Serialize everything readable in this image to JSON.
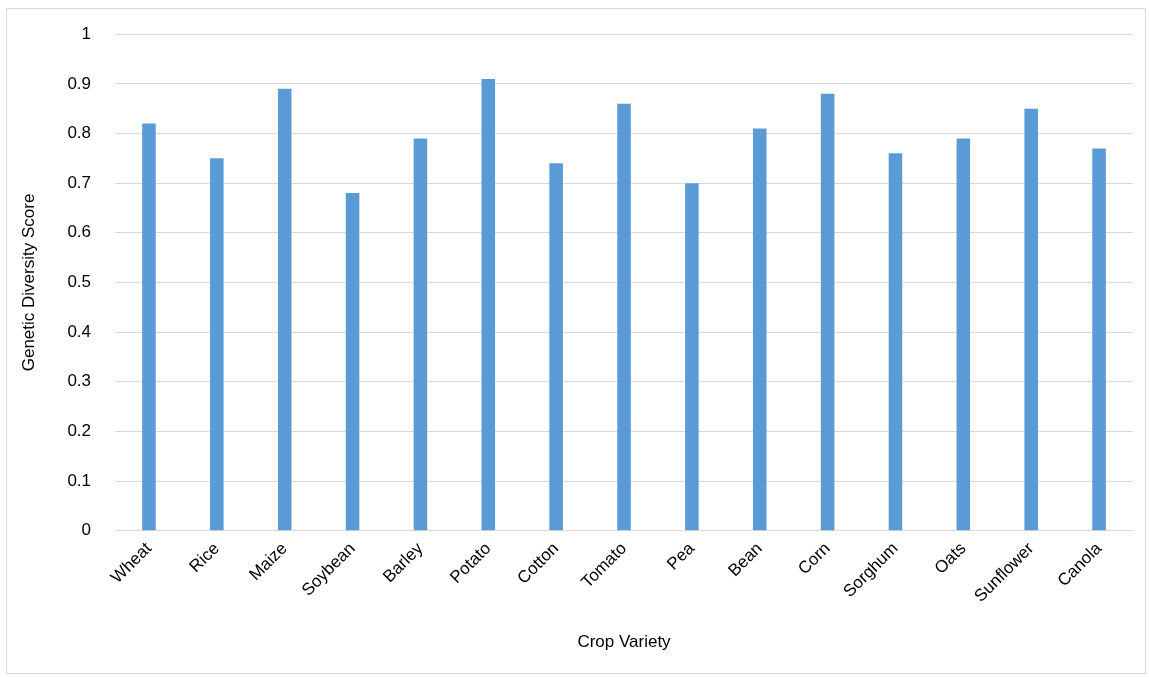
{
  "chart_data": {
    "type": "bar",
    "xlabel": "Crop Variety",
    "ylabel": "Genetic Diversity Score",
    "categories": [
      "Wheat",
      "Rice",
      "Maize",
      "Soybean",
      "Barley",
      "Potato",
      "Cotton",
      "Tomato",
      "Pea",
      "Bean",
      "Corn",
      "Sorghum",
      "Oats",
      "Sunflower",
      "Canola"
    ],
    "values": [
      0.82,
      0.75,
      0.89,
      0.68,
      0.79,
      0.91,
      0.74,
      0.86,
      0.7,
      0.81,
      0.88,
      0.76,
      0.79,
      0.85,
      0.77
    ],
    "color": "#5b9bd5",
    "ylim": [
      0,
      1
    ],
    "yticks": [
      0,
      0.1,
      0.2,
      0.3,
      0.4,
      0.5,
      0.6,
      0.7,
      0.8,
      0.9,
      1
    ],
    "grid": "y",
    "legend": false
  }
}
